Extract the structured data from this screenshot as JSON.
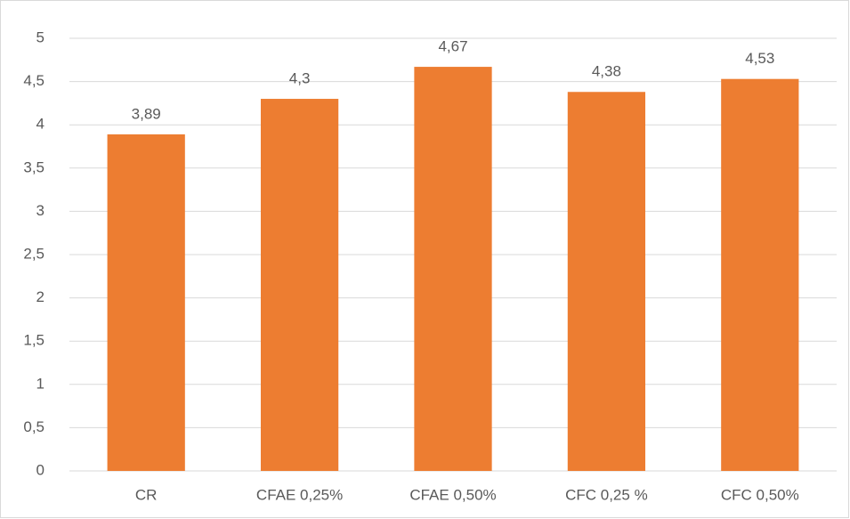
{
  "chart_data": {
    "type": "bar",
    "categories": [
      "CR",
      "CFAE 0,25%",
      "CFAE 0,50%",
      "CFC 0,25 %",
      "CFC 0,50%"
    ],
    "values": [
      3.89,
      4.3,
      4.67,
      4.38,
      4.53
    ],
    "value_labels": [
      "3,89",
      "4,3",
      "4,67",
      "4,38",
      "4,53"
    ],
    "color": "#ed7d31",
    "ylim": [
      0,
      5
    ],
    "yticks": [
      0,
      {
        "value": 0.5,
        "label": "0,5"
      },
      1,
      {
        "value": 1.5,
        "label": "1,5"
      },
      2,
      {
        "value": 2.5,
        "label": "2,5"
      },
      3,
      {
        "value": 3.5,
        "label": "3,5"
      },
      4,
      {
        "value": 4.5,
        "label": "4,5"
      },
      5
    ],
    "grid": true
  }
}
